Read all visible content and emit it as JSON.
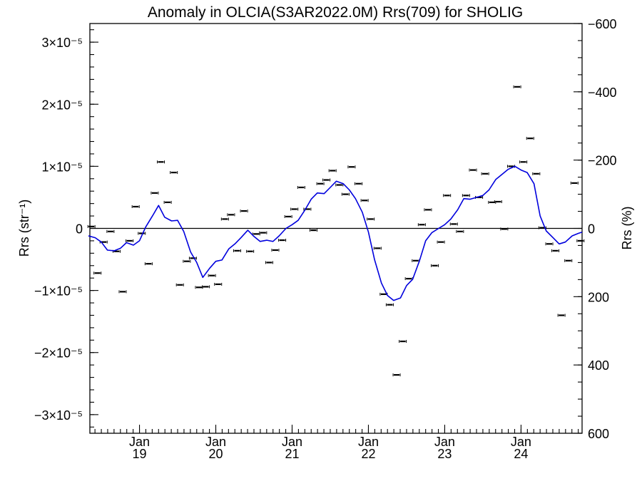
{
  "chart_data": {
    "type": "line",
    "title": "Anomaly in OLCIA(S3AR2022.0M) Rrs(709) for SHOLIG",
    "ylabel_left": "Rrs (str⁻¹)",
    "ylabel_right": "Rrs (%)",
    "xlim": [
      2018.35,
      2024.8
    ],
    "ylim": [
      -3.3e-05,
      3.3e-05
    ],
    "y2lim": [
      600,
      -600
    ],
    "y_ticks": [
      {
        "value": 3e-05,
        "label": "3×10⁻⁵"
      },
      {
        "value": 2e-05,
        "label": "2×10⁻⁵"
      },
      {
        "value": 1e-05,
        "label": "1×10⁻⁵"
      },
      {
        "value": 0,
        "label": "0"
      },
      {
        "value": -1e-05,
        "label": "−1×10⁻⁵"
      },
      {
        "value": -2e-05,
        "label": "−2×10⁻⁵"
      },
      {
        "value": -3e-05,
        "label": "−3×10⁻⁵"
      }
    ],
    "y2_ticks": [
      {
        "value": -600,
        "label": "−600"
      },
      {
        "value": -400,
        "label": "−400"
      },
      {
        "value": -200,
        "label": "−200"
      },
      {
        "value": 0,
        "label": "0"
      },
      {
        "value": 200,
        "label": "200"
      },
      {
        "value": 400,
        "label": "400"
      },
      {
        "value": 600,
        "label": "600"
      }
    ],
    "x_ticks": [
      {
        "value": 2019.0,
        "month": "Jan",
        "year": "19"
      },
      {
        "value": 2020.0,
        "month": "Jan",
        "year": "20"
      },
      {
        "value": 2021.0,
        "month": "Jan",
        "year": "21"
      },
      {
        "value": 2022.0,
        "month": "Jan",
        "year": "22"
      },
      {
        "value": 2023.0,
        "month": "Jan",
        "year": "23"
      },
      {
        "value": 2024.0,
        "month": "Jan",
        "year": "24"
      }
    ],
    "zero_line": 0,
    "grid": false,
    "legend": "none",
    "colors": {
      "line": "#0000dd",
      "points": "#000000",
      "axes": "#000000"
    },
    "series": [
      {
        "type": "errorbar-points",
        "x": [
          2018.37,
          2018.45,
          2018.53,
          2018.62,
          2018.7,
          2018.78,
          2018.87,
          2018.95,
          2019.03,
          2019.12,
          2019.2,
          2019.28,
          2019.37,
          2019.45,
          2019.53,
          2019.62,
          2019.7,
          2019.78,
          2019.87,
          2019.95,
          2020.03,
          2020.12,
          2020.2,
          2020.28,
          2020.37,
          2020.45,
          2020.53,
          2020.62,
          2020.7,
          2020.78,
          2020.87,
          2020.95,
          2021.03,
          2021.12,
          2021.2,
          2021.28,
          2021.37,
          2021.45,
          2021.53,
          2021.62,
          2021.7,
          2021.78,
          2021.87,
          2021.95,
          2022.03,
          2022.12,
          2022.2,
          2022.28,
          2022.37,
          2022.45,
          2022.53,
          2022.62,
          2022.7,
          2022.78,
          2022.87,
          2022.95,
          2023.03,
          2023.12,
          2023.2,
          2023.28,
          2023.37,
          2023.45,
          2023.53,
          2023.62,
          2023.7,
          2023.78,
          2023.87,
          2023.95,
          2024.03,
          2024.12,
          2024.2,
          2024.28,
          2024.37,
          2024.45,
          2024.53,
          2024.62,
          2024.7,
          2024.78
        ],
        "y": [
          3e-07,
          -7.2e-06,
          -2.2e-06,
          -5e-07,
          -3.7e-06,
          -1.02e-05,
          -2e-06,
          3.5e-06,
          -8e-07,
          -5.7e-06,
          5.7e-06,
          1.07e-05,
          4.2e-06,
          9e-06,
          -9.1e-06,
          -5.3e-06,
          -4.8e-06,
          -9.5e-06,
          -9.4e-06,
          -7.6e-06,
          -9e-06,
          1.5e-06,
          2.2e-06,
          -3.6e-06,
          2.8e-06,
          -3.7e-06,
          -9e-07,
          -7e-07,
          -5.5e-06,
          -3.5e-06,
          -1.9e-06,
          1.9e-06,
          3.1e-06,
          6.6e-06,
          3.1e-06,
          -3e-07,
          7.2e-06,
          7.8e-06,
          9.3e-06,
          7e-06,
          5.5e-06,
          9.9e-06,
          7.2e-06,
          4.5e-06,
          1.5e-06,
          -3.2e-06,
          -1.06e-05,
          -1.23e-05,
          -2.36e-05,
          -1.82e-05,
          -8.1e-06,
          -5.2e-06,
          6e-07,
          3e-06,
          -6e-06,
          -2.2e-06,
          5.3e-06,
          7e-07,
          -5e-07,
          5.3e-06,
          9.4e-06,
          5e-06,
          8.8e-06,
          4.2e-06,
          4.3e-06,
          -1e-07,
          1e-05,
          2.28e-05,
          1.07e-05,
          1.45e-05,
          8.8e-06,
          1e-07,
          -2.5e-06,
          -3.6e-06,
          -1.4e-05,
          -5.2e-06,
          7.3e-06,
          -2e-06
        ]
      },
      {
        "type": "line",
        "x": [
          2018.33,
          2018.42,
          2018.5,
          2018.58,
          2018.67,
          2018.75,
          2018.83,
          2018.92,
          2019.0,
          2019.08,
          2019.17,
          2019.25,
          2019.33,
          2019.42,
          2019.5,
          2019.58,
          2019.67,
          2019.75,
          2019.83,
          2019.92,
          2020.0,
          2020.08,
          2020.17,
          2020.25,
          2020.33,
          2020.42,
          2020.5,
          2020.58,
          2020.67,
          2020.75,
          2020.83,
          2020.92,
          2021.0,
          2021.08,
          2021.17,
          2021.25,
          2021.33,
          2021.42,
          2021.5,
          2021.58,
          2021.67,
          2021.75,
          2021.83,
          2021.92,
          2022.0,
          2022.08,
          2022.17,
          2022.25,
          2022.33,
          2022.42,
          2022.5,
          2022.58,
          2022.67,
          2022.75,
          2022.83,
          2022.92,
          2023.0,
          2023.08,
          2023.17,
          2023.25,
          2023.33,
          2023.42,
          2023.5,
          2023.58,
          2023.67,
          2023.75,
          2023.83,
          2023.92,
          2024.0,
          2024.08,
          2024.17,
          2024.25,
          2024.33,
          2024.42,
          2024.5,
          2024.58,
          2024.67,
          2024.75,
          2024.8
        ],
        "y": [
          -1.2e-06,
          -1.5e-06,
          -2.2e-06,
          -3.5e-06,
          -3.6e-06,
          -3.2e-06,
          -2.3e-06,
          -2.7e-06,
          -2e-06,
          2e-07,
          2e-06,
          3.7e-06,
          1.8e-06,
          1.2e-06,
          1.3e-06,
          -5e-07,
          -3.8e-06,
          -5.5e-06,
          -7.9e-06,
          -6.4e-06,
          -5.3e-06,
          -5.1e-06,
          -3.3e-06,
          -2.5e-06,
          -1.5e-06,
          -3e-07,
          -1.3e-06,
          -2.1e-06,
          -1.9e-06,
          -2.1e-06,
          -1.2e-06,
          0.0,
          6e-07,
          1.3e-06,
          3e-06,
          4.7e-06,
          5.7e-06,
          5.6e-06,
          6.6e-06,
          7.6e-06,
          7.2e-06,
          6.2e-06,
          4.8e-06,
          2.6e-06,
          -6e-07,
          -5e-06,
          -8.8e-06,
          -1.08e-05,
          -1.16e-05,
          -1.12e-05,
          -9.2e-06,
          -8.2e-06,
          -5.2e-06,
          -2e-06,
          -7e-07,
          0.0,
          6e-07,
          1.5e-06,
          3e-06,
          4.8e-06,
          4.7e-06,
          5e-06,
          5.3e-06,
          6.2e-06,
          7.9e-06,
          8.7e-06,
          9.5e-06,
          1e-05,
          9.4e-06,
          9e-06,
          7.2e-06,
          2e-06,
          -4e-07,
          -1.5e-06,
          -2.5e-06,
          -2.2e-06,
          -1.2e-06,
          -8e-07,
          -6e-07
        ]
      }
    ]
  }
}
